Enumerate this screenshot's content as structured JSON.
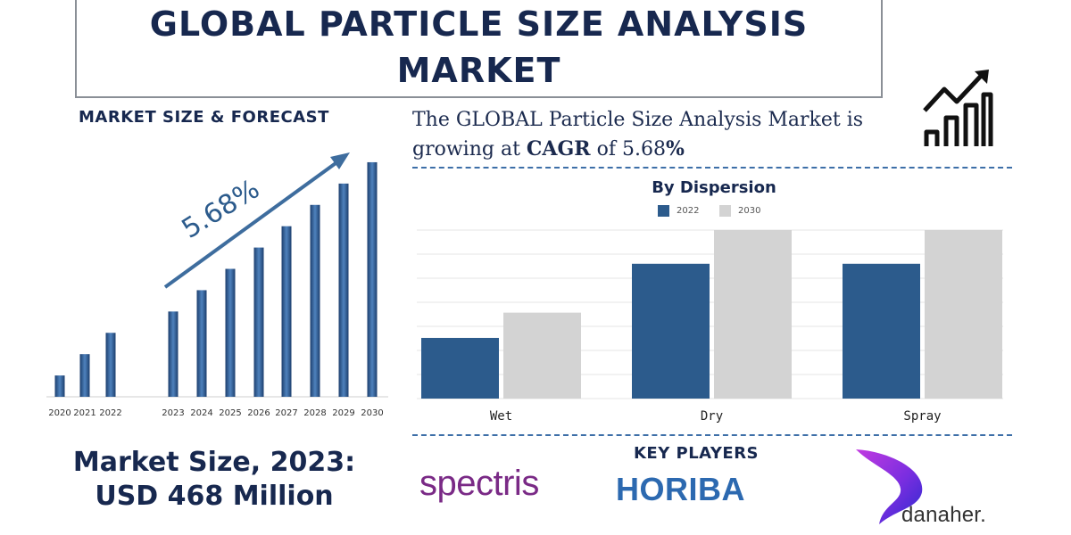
{
  "header": {
    "title": "GLOBAL PARTICLE SIZE ANALYSIS MARKET"
  },
  "left_panel": {
    "subtitle": "MARKET SIZE & FORECAST",
    "cagr_label": "5.68%",
    "market_size_line1": "Market Size, 2023:",
    "market_size_line2": "USD 468 Million"
  },
  "right_panel": {
    "growth_text_prefix": "The GLOBAL Particle Size Analysis Market is growing at ",
    "growth_text_cagr": "CAGR",
    "growth_text_of": " of 5.68",
    "growth_text_pct": "%"
  },
  "key_players": {
    "label": "KEY PLAYERS",
    "logos": [
      "spectris",
      "HORIBA",
      "danaher."
    ]
  },
  "icons": [
    "growth-chart-icon"
  ],
  "colors": {
    "primary_bar": "#2c5b8c",
    "secondary_bar": "#d3d3d3",
    "title_text": "#17284f",
    "accent": "#3d6fa8"
  },
  "chart_data": [
    {
      "type": "bar",
      "title": "",
      "categories": [
        "2020",
        "2021",
        "2022",
        "2023",
        "2024",
        "2025",
        "2026",
        "2027",
        "2028",
        "2029",
        "2030"
      ],
      "values": [
        1.0,
        2.0,
        3.0,
        4.0,
        5.0,
        6.0,
        7.0,
        8.0,
        9.0,
        10.0,
        11.0
      ],
      "annotation": "5.68%",
      "xlabel": "",
      "ylabel": "",
      "ylim": [
        0,
        11.5
      ],
      "grid": false,
      "legend": "none"
    },
    {
      "type": "bar",
      "title": "By Dispersion",
      "categories": [
        "Wet",
        "Dry",
        "Spray"
      ],
      "series": [
        {
          "name": "2022",
          "values": [
            1.8,
            4.0,
            4.0
          ]
        },
        {
          "name": "2030",
          "values": [
            2.55,
            5.0,
            5.0
          ]
        }
      ],
      "xlabel": "",
      "ylabel": "",
      "ylim": [
        0,
        5.0
      ],
      "grid": true,
      "legend": "top-center"
    }
  ]
}
